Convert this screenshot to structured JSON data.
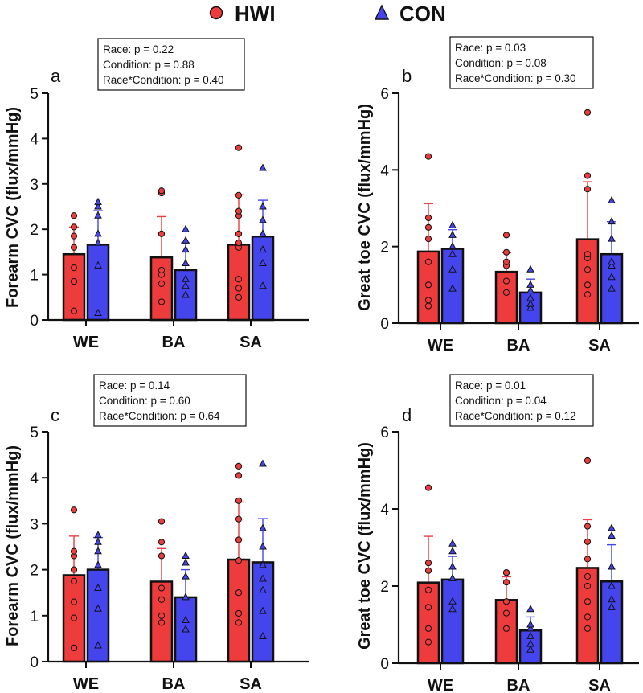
{
  "legend": [
    {
      "label": "HWI",
      "color": "#ee3b3b",
      "marker": "circle"
    },
    {
      "label": "CON",
      "color": "#4545ee",
      "marker": "triangle"
    }
  ],
  "colors": {
    "hwi": "#ee3b3b",
    "con": "#4545ee",
    "axis": "#111111"
  },
  "chart_data": [
    {
      "id": "a",
      "type": "bar",
      "panel_label": "a",
      "ylabel": "Forearm CVC (flux/mmHg)",
      "ylim": [
        0,
        5
      ],
      "yticks": [
        0,
        1,
        2,
        3,
        4,
        5
      ],
      "categories": [
        "WE",
        "BA",
        "SA"
      ],
      "stats": [
        "Race: p = 0.22",
        "Condition: p = 0.88",
        "Race*Condition: p = 0.40"
      ],
      "series": [
        {
          "name": "HWI",
          "means": [
            1.45,
            1.38,
            1.66
          ],
          "sd": [
            0.6,
            0.9,
            1.1
          ],
          "points": [
            [
              0.2,
              0.85,
              1.15,
              1.6,
              1.85,
              2.05,
              2.3
            ],
            [
              0.4,
              0.8,
              1.0,
              1.1,
              1.9,
              2.8,
              2.85
            ],
            [
              0.5,
              0.7,
              0.9,
              1.6,
              1.7,
              1.9,
              2.3,
              2.4,
              2.75,
              3.8
            ]
          ]
        },
        {
          "name": "CON",
          "means": [
            1.66,
            1.1,
            1.84
          ],
          "sd": [
            0.75,
            0.6,
            0.8
          ],
          "points": [
            [
              0.15,
              1.2,
              1.7,
              1.9,
              2.3,
              2.5,
              2.6
            ],
            [
              0.55,
              0.75,
              0.9,
              1.25,
              1.55,
              1.75,
              2.0
            ],
            [
              0.75,
              1.25,
              1.55,
              1.9,
              2.2,
              2.5,
              3.35
            ]
          ]
        }
      ]
    },
    {
      "id": "b",
      "type": "bar",
      "panel_label": "b",
      "ylabel": "Great toe CVC (flux/mmHg)",
      "ylim": [
        0,
        6
      ],
      "yticks": [
        0,
        2,
        4,
        6
      ],
      "categories": [
        "WE",
        "BA",
        "SA"
      ],
      "stats": [
        "Race: p = 0.03",
        "Condition: p = 0.08",
        "Race*Condition: p = 0.30"
      ],
      "series": [
        {
          "name": "HWI",
          "means": [
            1.87,
            1.34,
            2.19
          ],
          "sd": [
            1.25,
            0.5,
            1.5
          ],
          "points": [
            [
              0.45,
              0.6,
              1.0,
              1.6,
              2.2,
              2.5,
              2.75,
              4.35
            ],
            [
              0.8,
              1.1,
              1.5,
              1.6,
              1.85,
              2.3
            ],
            [
              0.75,
              1.0,
              1.4,
              1.7,
              1.8,
              3.5,
              3.85,
              5.5
            ]
          ]
        },
        {
          "name": "CON",
          "means": [
            1.94,
            0.8,
            1.8
          ],
          "sd": [
            0.5,
            0.35,
            0.85
          ],
          "points": [
            [
              0.9,
              1.4,
              1.8,
              2.0,
              2.3,
              2.55
            ],
            [
              0.4,
              0.5,
              0.65,
              0.85,
              1.0,
              1.4
            ],
            [
              0.9,
              1.2,
              1.5,
              1.6,
              2.2,
              2.65,
              3.2
            ]
          ]
        }
      ]
    },
    {
      "id": "c",
      "type": "bar",
      "panel_label": "c",
      "ylabel": "Forearm CVC (flux/mmHg)",
      "ylim": [
        0,
        5
      ],
      "yticks": [
        0,
        1,
        2,
        3,
        4,
        5
      ],
      "categories": [
        "WE",
        "BA",
        "SA"
      ],
      "stats": [
        "Race: p = 0.14",
        "Condition: p = 0.60",
        "Race*Condition: p = 0.64"
      ],
      "series": [
        {
          "name": "HWI",
          "means": [
            1.88,
            1.74,
            2.22
          ],
          "sd": [
            0.85,
            0.72,
            1.25
          ],
          "points": [
            [
              0.3,
              0.95,
              1.3,
              1.75,
              2.0,
              2.3,
              2.4,
              3.3
            ],
            [
              0.85,
              1.0,
              1.35,
              1.6,
              2.3,
              2.6,
              3.05
            ],
            [
              0.85,
              1.05,
              1.5,
              2.2,
              2.65,
              3.1,
              3.5,
              4.05,
              4.25
            ]
          ]
        },
        {
          "name": "CON",
          "means": [
            2.0,
            1.4,
            2.16
          ],
          "sd": [
            0.7,
            0.6,
            0.95
          ],
          "points": [
            [
              0.35,
              1.15,
              1.6,
              2.1,
              2.4,
              2.6,
              2.75
            ],
            [
              0.7,
              0.9,
              1.4,
              1.85,
              2.15,
              2.3
            ],
            [
              0.55,
              1.1,
              1.55,
              1.8,
              2.1,
              2.5,
              2.9,
              4.3
            ]
          ]
        }
      ]
    },
    {
      "id": "d",
      "type": "bar",
      "panel_label": "d",
      "ylabel": "Great toe CVC (flux/mmHg)",
      "ylim": [
        0,
        6
      ],
      "yticks": [
        0,
        2,
        4,
        6
      ],
      "categories": [
        "WE",
        "BA",
        "SA"
      ],
      "stats": [
        "Race: p = 0.01",
        "Condition: p = 0.04",
        "Race*Condition: p = 0.12"
      ],
      "series": [
        {
          "name": "HWI",
          "means": [
            2.09,
            1.64,
            2.47
          ],
          "sd": [
            1.2,
            0.6,
            1.25
          ],
          "points": [
            [
              0.55,
              0.9,
              1.45,
              1.9,
              2.4,
              2.6,
              4.55
            ],
            [
              0.9,
              1.3,
              1.6,
              2.1,
              2.35,
              2.35
            ],
            [
              0.9,
              1.2,
              1.6,
              2.0,
              2.25,
              2.7,
              3.15,
              3.55,
              5.25
            ]
          ]
        },
        {
          "name": "CON",
          "means": [
            2.17,
            0.85,
            2.12
          ],
          "sd": [
            0.6,
            0.35,
            0.95
          ],
          "points": [
            [
              1.4,
              1.6,
              2.2,
              2.5,
              2.9,
              3.1
            ],
            [
              0.35,
              0.5,
              0.7,
              0.9,
              1.0,
              1.4
            ],
            [
              1.45,
              1.65,
              2.0,
              2.5,
              3.3,
              3.5
            ]
          ]
        }
      ]
    }
  ]
}
